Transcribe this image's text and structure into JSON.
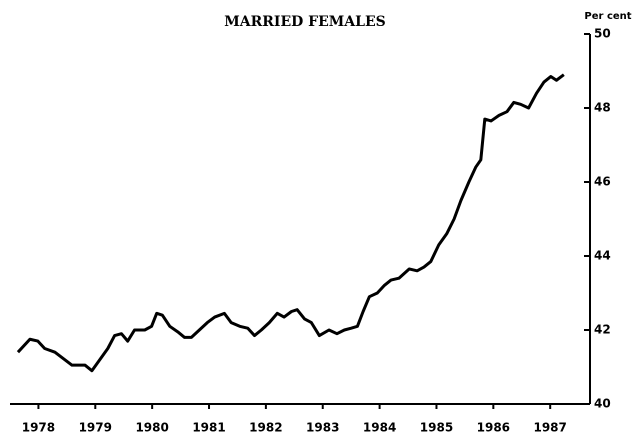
{
  "chart_data": {
    "type": "line",
    "title": "MARRIED FEMALES",
    "y_axis_label": "Per cent",
    "x": [
      1978.14,
      1978.35,
      1978.49,
      1978.61,
      1978.79,
      1978.96,
      1979.09,
      1979.32,
      1979.44,
      1979.58,
      1979.72,
      1979.84,
      1979.96,
      1980.07,
      1980.19,
      1980.37,
      1980.49,
      1980.58,
      1980.68,
      1980.81,
      1980.95,
      1981.07,
      1981.19,
      1981.33,
      1981.47,
      1981.6,
      1981.77,
      1981.89,
      1982.04,
      1982.18,
      1982.3,
      1982.42,
      1982.56,
      1982.7,
      1982.82,
      1982.95,
      1983.05,
      1983.18,
      1983.3,
      1983.44,
      1983.61,
      1983.75,
      1983.88,
      1984.0,
      1984.11,
      1984.21,
      1984.32,
      1984.46,
      1984.58,
      1984.7,
      1984.84,
      1985.02,
      1985.16,
      1985.28,
      1985.4,
      1985.54,
      1985.68,
      1985.81,
      1985.93,
      1986.07,
      1986.19,
      1986.28,
      1986.35,
      1986.46,
      1986.6,
      1986.74,
      1986.86,
      1986.98,
      1987.12,
      1987.26,
      1987.39,
      1987.51,
      1987.61,
      1987.74
    ],
    "series": [
      {
        "name": "Married females",
        "color": "#000000",
        "values": [
          41.4,
          41.75,
          41.7,
          41.5,
          41.4,
          41.2,
          41.05,
          41.05,
          40.9,
          41.2,
          41.5,
          41.85,
          41.9,
          41.7,
          42.0,
          42.0,
          42.1,
          42.45,
          42.4,
          42.1,
          41.95,
          41.8,
          41.8,
          42.0,
          42.2,
          42.35,
          42.45,
          42.2,
          42.1,
          42.05,
          41.85,
          42.0,
          42.2,
          42.45,
          42.35,
          42.5,
          42.55,
          42.3,
          42.2,
          41.85,
          42.0,
          41.9,
          42.0,
          42.05,
          42.1,
          42.5,
          42.9,
          43.0,
          43.2,
          43.35,
          43.4,
          43.65,
          43.6,
          43.7,
          43.85,
          44.3,
          44.6,
          45.0,
          45.5,
          46.0,
          46.4,
          46.6,
          47.7,
          47.65,
          47.8,
          47.9,
          48.15,
          48.1,
          48.0,
          48.4,
          48.7,
          48.85,
          48.75,
          48.9
        ]
      }
    ],
    "xlim": [
      1978,
      1988.2
    ],
    "xticks": [
      {
        "value": 1978.5,
        "label": "1978"
      },
      {
        "value": 1979.5,
        "label": "1979"
      },
      {
        "value": 1980.5,
        "label": "1980"
      },
      {
        "value": 1981.5,
        "label": "1981"
      },
      {
        "value": 1982.5,
        "label": "1982"
      },
      {
        "value": 1983.5,
        "label": "1983"
      },
      {
        "value": 1984.5,
        "label": "1984"
      },
      {
        "value": 1985.5,
        "label": "1985"
      },
      {
        "value": 1986.5,
        "label": "1986"
      },
      {
        "value": 1987.5,
        "label": "1987"
      }
    ],
    "ylim": [
      40,
      50
    ],
    "yticks": [
      40,
      42,
      44,
      46,
      48,
      50
    ],
    "grid": false
  }
}
